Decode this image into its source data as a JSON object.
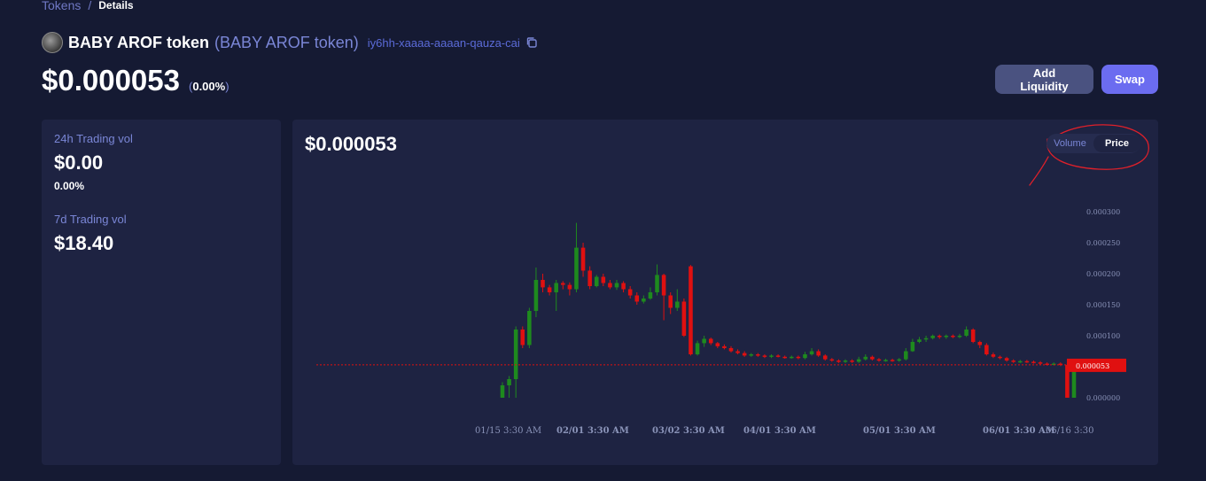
{
  "breadcrumb": {
    "parent": "Tokens",
    "separator": "/",
    "current": "Details"
  },
  "token": {
    "name": "BABY AROF token",
    "symbol": "(BABY AROF token)",
    "canister_id": "iy6hh-xaaaa-aaaan-qauza-cai",
    "price": "$0.000053",
    "change_open": "(",
    "change": "0.00%",
    "change_close": ")"
  },
  "buttons": {
    "add_liquidity": "Add Liquidity",
    "swap": "Swap"
  },
  "stats": {
    "vol24_label": "24h Trading vol",
    "vol24_value": "$0.00",
    "vol24_change": "0.00%",
    "vol7_label": "7d Trading vol",
    "vol7_value": "$18.40"
  },
  "chart": {
    "current_price": "$0.000053",
    "toggle": {
      "volume": "Volume",
      "price": "Price",
      "selected": "Price"
    },
    "colors": {
      "up": "#1e8a1e",
      "down": "#e01010",
      "marker": "#e01010",
      "annotation": "#e0202a"
    }
  },
  "chart_data": {
    "type": "candlestick",
    "price_label": "0.000053",
    "y_ticks": [
      "0.000300",
      "0.000250",
      "0.000200",
      "0.000150",
      "0.000100",
      "0.000000"
    ],
    "ylim": [
      0,
      0.0003
    ],
    "x_ticks": [
      {
        "label": "01/15 3:30 AM",
        "bold": false
      },
      {
        "label": "02/01 3:30 AM",
        "bold": true
      },
      {
        "label": "03/02 3:30 AM",
        "bold": true
      },
      {
        "label": "04/01 3:30 AM",
        "bold": true
      },
      {
        "label": "05/01 3:30 AM",
        "bold": true
      },
      {
        "label": "06/01 3:30 AM",
        "bold": true
      },
      {
        "label": "06/16 3:30",
        "bold": false
      }
    ],
    "candles": [
      {
        "o": 0.0,
        "c": 2e-05,
        "h": 2.5e-05,
        "l": 0.0
      },
      {
        "o": 2e-05,
        "c": 3e-05,
        "h": 3.5e-05,
        "l": 0.0
      },
      {
        "o": 3e-05,
        "c": 0.00011,
        "h": 0.000115,
        "l": 0.0
      },
      {
        "o": 0.00011,
        "c": 8.5e-05,
        "h": 0.000115,
        "l": 8e-05
      },
      {
        "o": 8.5e-05,
        "c": 0.00014,
        "h": 0.000145,
        "l": 8e-05
      },
      {
        "o": 0.00014,
        "c": 0.00019,
        "h": 0.00021,
        "l": 0.00013
      },
      {
        "o": 0.00019,
        "c": 0.000178,
        "h": 0.0002,
        "l": 0.00017
      },
      {
        "o": 0.000178,
        "c": 0.00017,
        "h": 0.000182,
        "l": 0.000165
      },
      {
        "o": 0.00017,
        "c": 0.000185,
        "h": 0.00019,
        "l": 0.00014
      },
      {
        "o": 0.000185,
        "c": 0.000182,
        "h": 0.000188,
        "l": 0.000175
      },
      {
        "o": 0.000182,
        "c": 0.000175,
        "h": 0.000186,
        "l": 0.000165
      },
      {
        "o": 0.000175,
        "c": 0.000242,
        "h": 0.000282,
        "l": 0.00017
      },
      {
        "o": 0.000242,
        "c": 0.000205,
        "h": 0.00025,
        "l": 0.000195
      },
      {
        "o": 0.000205,
        "c": 0.00018,
        "h": 0.000212,
        "l": 0.000175
      },
      {
        "o": 0.00018,
        "c": 0.000195,
        "h": 0.000198,
        "l": 0.000178
      },
      {
        "o": 0.000195,
        "c": 0.000185,
        "h": 0.0002,
        "l": 0.00018
      },
      {
        "o": 0.000185,
        "c": 0.000178,
        "h": 0.00019,
        "l": 0.000175
      },
      {
        "o": 0.000178,
        "c": 0.000185,
        "h": 0.00019,
        "l": 0.000174
      },
      {
        "o": 0.000185,
        "c": 0.000175,
        "h": 0.000188,
        "l": 0.00017
      },
      {
        "o": 0.000175,
        "c": 0.000165,
        "h": 0.00018,
        "l": 0.00016
      },
      {
        "o": 0.000165,
        "c": 0.000155,
        "h": 0.00017,
        "l": 0.00015
      },
      {
        "o": 0.000155,
        "c": 0.00016,
        "h": 0.000165,
        "l": 0.000152
      },
      {
        "o": 0.00016,
        "c": 0.00017,
        "h": 0.000178,
        "l": 0.000158
      },
      {
        "o": 0.00017,
        "c": 0.000198,
        "h": 0.000215,
        "l": 0.000165
      },
      {
        "o": 0.000198,
        "c": 0.000165,
        "h": 0.0002,
        "l": 0.000125
      },
      {
        "o": 0.000165,
        "c": 0.000145,
        "h": 0.00017,
        "l": 0.000135
      },
      {
        "o": 0.000145,
        "c": 0.000155,
        "h": 0.000175,
        "l": 0.00014
      },
      {
        "o": 0.000155,
        "c": 0.0001,
        "h": 0.00016,
        "l": 9.8e-05
      },
      {
        "o": 0.000212,
        "c": 7e-05,
        "h": 0.000214,
        "l": 6.8e-05
      },
      {
        "o": 7e-05,
        "c": 8.8e-05,
        "h": 9.2e-05,
        "l": 6.8e-05
      },
      {
        "o": 8.8e-05,
        "c": 9.5e-05,
        "h": 0.0001,
        "l": 8.2e-05
      },
      {
        "o": 9.5e-05,
        "c": 8.8e-05,
        "h": 9.7e-05,
        "l": 8.5e-05
      },
      {
        "o": 8.8e-05,
        "c": 8.3e-05,
        "h": 9e-05,
        "l": 8e-05
      },
      {
        "o": 8.3e-05,
        "c": 8e-05,
        "h": 8.6e-05,
        "l": 7.8e-05
      },
      {
        "o": 8e-05,
        "c": 7.5e-05,
        "h": 8.3e-05,
        "l": 7.3e-05
      },
      {
        "o": 7.5e-05,
        "c": 7.2e-05,
        "h": 7.8e-05,
        "l": 7e-05
      },
      {
        "o": 7.2e-05,
        "c": 6.8e-05,
        "h": 7.5e-05,
        "l": 6.6e-05
      },
      {
        "o": 6.8e-05,
        "c": 7e-05,
        "h": 7.2e-05,
        "l": 6.6e-05
      },
      {
        "o": 7e-05,
        "c": 6.8e-05,
        "h": 7.2e-05,
        "l": 6.6e-05
      },
      {
        "o": 6.8e-05,
        "c": 6.6e-05,
        "h": 7e-05,
        "l": 6.4e-05
      },
      {
        "o": 6.6e-05,
        "c": 6.8e-05,
        "h": 7e-05,
        "l": 6.4e-05
      },
      {
        "o": 6.8e-05,
        "c": 6.6e-05,
        "h": 7e-05,
        "l": 6.5e-05
      },
      {
        "o": 6.6e-05,
        "c": 6.5e-05,
        "h": 6.8e-05,
        "l": 6.3e-05
      },
      {
        "o": 6.5e-05,
        "c": 6.6e-05,
        "h": 6.8e-05,
        "l": 6.3e-05
      },
      {
        "o": 6.6e-05,
        "c": 6.4e-05,
        "h": 6.8e-05,
        "l": 6.2e-05
      },
      {
        "o": 6.4e-05,
        "c": 7e-05,
        "h": 7.4e-05,
        "l": 6.2e-05
      },
      {
        "o": 7e-05,
        "c": 7.5e-05,
        "h": 8e-05,
        "l": 6.8e-05
      },
      {
        "o": 7.5e-05,
        "c": 6.8e-05,
        "h": 7.8e-05,
        "l": 6.6e-05
      },
      {
        "o": 6.8e-05,
        "c": 6.2e-05,
        "h": 7e-05,
        "l": 6e-05
      },
      {
        "o": 6.2e-05,
        "c": 6e-05,
        "h": 6.4e-05,
        "l": 5.8e-05
      },
      {
        "o": 6e-05,
        "c": 5.8e-05,
        "h": 6.2e-05,
        "l": 5.6e-05
      },
      {
        "o": 5.8e-05,
        "c": 6e-05,
        "h": 6.2e-05,
        "l": 5.6e-05
      },
      {
        "o": 6e-05,
        "c": 5.8e-05,
        "h": 6.2e-05,
        "l": 5.6e-05
      },
      {
        "o": 5.8e-05,
        "c": 6.2e-05,
        "h": 6.6e-05,
        "l": 5.6e-05
      },
      {
        "o": 6.2e-05,
        "c": 6.6e-05,
        "h": 7e-05,
        "l": 6e-05
      },
      {
        "o": 6.6e-05,
        "c": 6.2e-05,
        "h": 6.8e-05,
        "l": 6e-05
      },
      {
        "o": 6.2e-05,
        "c": 6e-05,
        "h": 6.4e-05,
        "l": 5.8e-05
      },
      {
        "o": 6e-05,
        "c": 6.1e-05,
        "h": 6.3e-05,
        "l": 5.8e-05
      },
      {
        "o": 6.1e-05,
        "c": 6e-05,
        "h": 6.3e-05,
        "l": 5.8e-05
      },
      {
        "o": 6e-05,
        "c": 6.2e-05,
        "h": 6.4e-05,
        "l": 5.8e-05
      },
      {
        "o": 6.2e-05,
        "c": 7.5e-05,
        "h": 8e-05,
        "l": 6e-05
      },
      {
        "o": 7.5e-05,
        "c": 9e-05,
        "h": 9.5e-05,
        "l": 7.4e-05
      },
      {
        "o": 9e-05,
        "c": 9.4e-05,
        "h": 9.8e-05,
        "l": 8.8e-05
      },
      {
        "o": 9.4e-05,
        "c": 9.6e-05,
        "h": 0.0001,
        "l": 9e-05
      },
      {
        "o": 9.6e-05,
        "c": 0.0001,
        "h": 0.000102,
        "l": 9.4e-05
      },
      {
        "o": 0.0001,
        "c": 9.8e-05,
        "h": 0.000102,
        "l": 9.5e-05
      },
      {
        "o": 9.8e-05,
        "c": 0.0001,
        "h": 0.000102,
        "l": 9.5e-05
      },
      {
        "o": 0.0001,
        "c": 9.8e-05,
        "h": 0.000102,
        "l": 9.6e-05
      },
      {
        "o": 9.8e-05,
        "c": 0.0001,
        "h": 0.000103,
        "l": 9.6e-05
      },
      {
        "o": 0.0001,
        "c": 0.00011,
        "h": 0.000115,
        "l": 9.8e-05
      },
      {
        "o": 0.00011,
        "c": 9e-05,
        "h": 0.000112,
        "l": 8.8e-05
      },
      {
        "o": 9e-05,
        "c": 8.5e-05,
        "h": 9.2e-05,
        "l": 8e-05
      },
      {
        "o": 8.5e-05,
        "c": 7e-05,
        "h": 8.8e-05,
        "l": 6.8e-05
      },
      {
        "o": 7e-05,
        "c": 6.6e-05,
        "h": 7.3e-05,
        "l": 6.4e-05
      },
      {
        "o": 6.6e-05,
        "c": 6.4e-05,
        "h": 6.8e-05,
        "l": 6.2e-05
      },
      {
        "o": 6.4e-05,
        "c": 6e-05,
        "h": 6.6e-05,
        "l": 5.8e-05
      },
      {
        "o": 6e-05,
        "c": 5.8e-05,
        "h": 6.2e-05,
        "l": 5.6e-05
      },
      {
        "o": 5.8e-05,
        "c": 5.9e-05,
        "h": 6.1e-05,
        "l": 5.6e-05
      },
      {
        "o": 5.9e-05,
        "c": 5.8e-05,
        "h": 6.1e-05,
        "l": 5.6e-05
      },
      {
        "o": 5.8e-05,
        "c": 5.7e-05,
        "h": 6e-05,
        "l": 5.5e-05
      },
      {
        "o": 5.7e-05,
        "c": 5.5e-05,
        "h": 5.9e-05,
        "l": 5.3e-05
      },
      {
        "o": 5.5e-05,
        "c": 5.4e-05,
        "h": 5.7e-05,
        "l": 5.2e-05
      },
      {
        "o": 5.4e-05,
        "c": 5.5e-05,
        "h": 5.7e-05,
        "l": 5.2e-05
      },
      {
        "o": 5.5e-05,
        "c": 5.3e-05,
        "h": 5.7e-05,
        "l": 5.1e-05
      },
      {
        "o": 5.3e-05,
        "c": 0.0,
        "h": 5.6e-05,
        "l": 0.0
      },
      {
        "o": 0.0,
        "c": 5.3e-05,
        "h": 5.6e-05,
        "l": 0.0
      }
    ]
  }
}
